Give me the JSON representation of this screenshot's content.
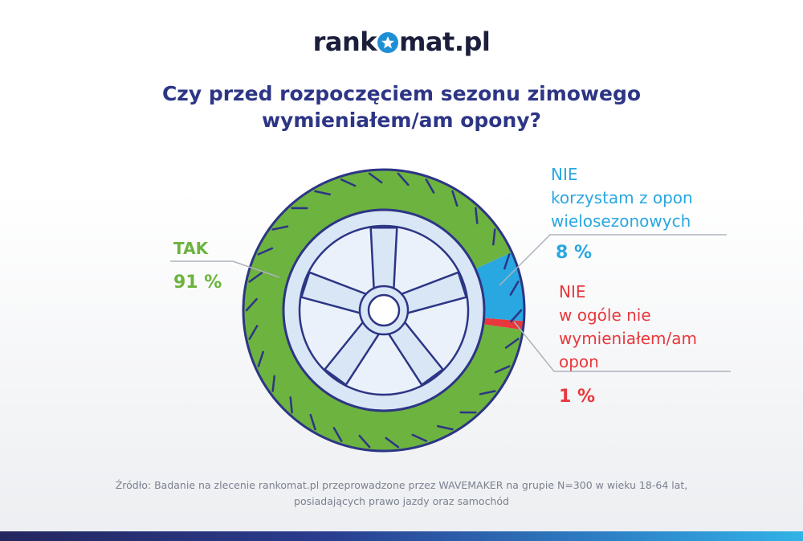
{
  "logo": {
    "text_before": "rank",
    "text_after": "mat.pl"
  },
  "title": {
    "line1": "Czy przed rozpoczęciem sezonu zimowego",
    "line2": "wymieniałem/am opony?"
  },
  "colors": {
    "tak": "#6cb33f",
    "nie_wielosezonowe": "#29a7e1",
    "nie_wcale": "#e8383d",
    "title": "#2d3585",
    "rim": "#d9e6f5",
    "rim_stroke": "#2d3585"
  },
  "labels": {
    "tak": {
      "name": "TAK",
      "value": "91 %"
    },
    "nie_wielosezonowe": {
      "line1": "NIE",
      "line2": "korzystam z opon",
      "line3": "wielosezonowych",
      "value": "8 %"
    },
    "nie_wcale": {
      "line1": "NIE",
      "line2": "w ogóle nie",
      "line3": "wymieniałem/am",
      "line4": "opon",
      "value": "1 %"
    }
  },
  "chart_data": {
    "type": "pie",
    "title": "Czy przed rozpoczęciem sezonu zimowego wymieniałem/am opony?",
    "categories": [
      "TAK",
      "NIE korzystam z opon wielosezonowych",
      "NIE w ogóle nie wymieniałem/am opon"
    ],
    "values": [
      91,
      8,
      1
    ],
    "unit": "%",
    "colors": [
      "#6cb33f",
      "#29a7e1",
      "#e8383d"
    ],
    "style": "tire-ring"
  },
  "source": {
    "line1": "Źródło: Badanie na zlecenie rankomat.pl przeprowadzone przez WAVEMAKER na grupie N=300 w wieku 18-64 lat,",
    "line2": "posiadających prawo jazdy oraz samochód"
  }
}
